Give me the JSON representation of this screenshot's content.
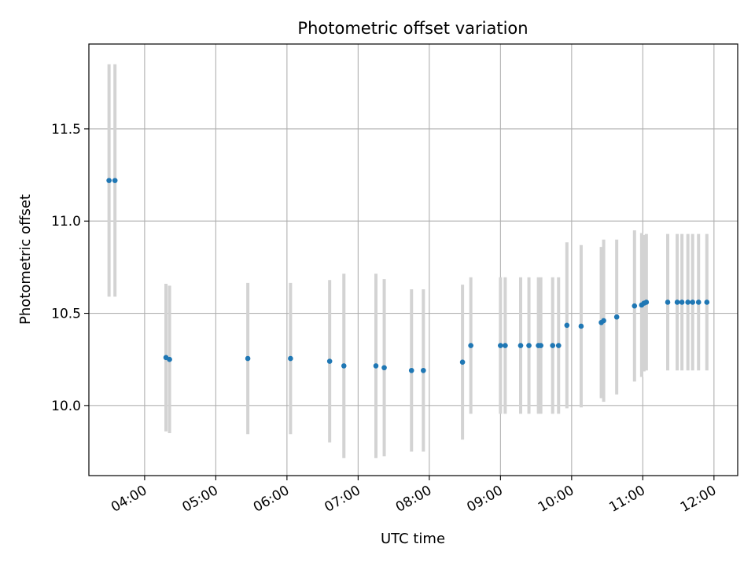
{
  "chart_data": {
    "type": "scatter",
    "title": "Photometric offset variation",
    "xlabel": "UTC time",
    "ylabel": "Photometric offset",
    "grid": true,
    "legend": "none",
    "xlim": [
      "03:13",
      "12:20"
    ],
    "ylim": [
      9.62,
      11.96
    ],
    "x_ticks": [
      "04:00",
      "05:00",
      "06:00",
      "07:00",
      "08:00",
      "09:00",
      "10:00",
      "11:00",
      "12:00"
    ],
    "y_ticks": [
      10.0,
      10.5,
      11.0,
      11.5
    ],
    "colors": {
      "point": "#1f77b4",
      "errorbar": "#d3d3d3",
      "grid": "#b0b0b0"
    },
    "points": [
      {
        "x": "03:30",
        "y": 11.22,
        "err": 0.63
      },
      {
        "x": "03:35",
        "y": 11.22,
        "err": 0.63
      },
      {
        "x": "04:18",
        "y": 10.26,
        "err": 0.4
      },
      {
        "x": "04:21",
        "y": 10.25,
        "err": 0.4
      },
      {
        "x": "05:27",
        "y": 10.255,
        "err": 0.41
      },
      {
        "x": "06:03",
        "y": 10.255,
        "err": 0.41
      },
      {
        "x": "06:36",
        "y": 10.24,
        "err": 0.44
      },
      {
        "x": "06:48",
        "y": 10.215,
        "err": 0.5
      },
      {
        "x": "07:15",
        "y": 10.215,
        "err": 0.5
      },
      {
        "x": "07:22",
        "y": 10.205,
        "err": 0.48
      },
      {
        "x": "07:45",
        "y": 10.19,
        "err": 0.44
      },
      {
        "x": "07:55",
        "y": 10.19,
        "err": 0.44
      },
      {
        "x": "08:28",
        "y": 10.235,
        "err": 0.42
      },
      {
        "x": "08:35",
        "y": 10.325,
        "err": 0.37
      },
      {
        "x": "09:00",
        "y": 10.325,
        "err": 0.37
      },
      {
        "x": "09:04",
        "y": 10.325,
        "err": 0.37
      },
      {
        "x": "09:17",
        "y": 10.325,
        "err": 0.37
      },
      {
        "x": "09:24",
        "y": 10.325,
        "err": 0.37
      },
      {
        "x": "09:32",
        "y": 10.325,
        "err": 0.37
      },
      {
        "x": "09:34",
        "y": 10.325,
        "err": 0.37
      },
      {
        "x": "09:44",
        "y": 10.325,
        "err": 0.37
      },
      {
        "x": "09:49",
        "y": 10.325,
        "err": 0.37
      },
      {
        "x": "09:56",
        "y": 10.435,
        "err": 0.45
      },
      {
        "x": "10:08",
        "y": 10.43,
        "err": 0.44
      },
      {
        "x": "10:25",
        "y": 10.45,
        "err": 0.41
      },
      {
        "x": "10:27",
        "y": 10.46,
        "err": 0.44
      },
      {
        "x": "10:38",
        "y": 10.48,
        "err": 0.42
      },
      {
        "x": "10:53",
        "y": 10.54,
        "err": 0.41
      },
      {
        "x": "10:59",
        "y": 10.545,
        "err": 0.39
      },
      {
        "x": "11:01",
        "y": 10.555,
        "err": 0.37
      },
      {
        "x": "11:03",
        "y": 10.56,
        "err": 0.37
      },
      {
        "x": "11:21",
        "y": 10.56,
        "err": 0.37
      },
      {
        "x": "11:29",
        "y": 10.56,
        "err": 0.37
      },
      {
        "x": "11:33",
        "y": 10.56,
        "err": 0.37
      },
      {
        "x": "11:38",
        "y": 10.56,
        "err": 0.37
      },
      {
        "x": "11:42",
        "y": 10.56,
        "err": 0.37
      },
      {
        "x": "11:47",
        "y": 10.56,
        "err": 0.37
      },
      {
        "x": "11:54",
        "y": 10.56,
        "err": 0.37
      }
    ]
  }
}
